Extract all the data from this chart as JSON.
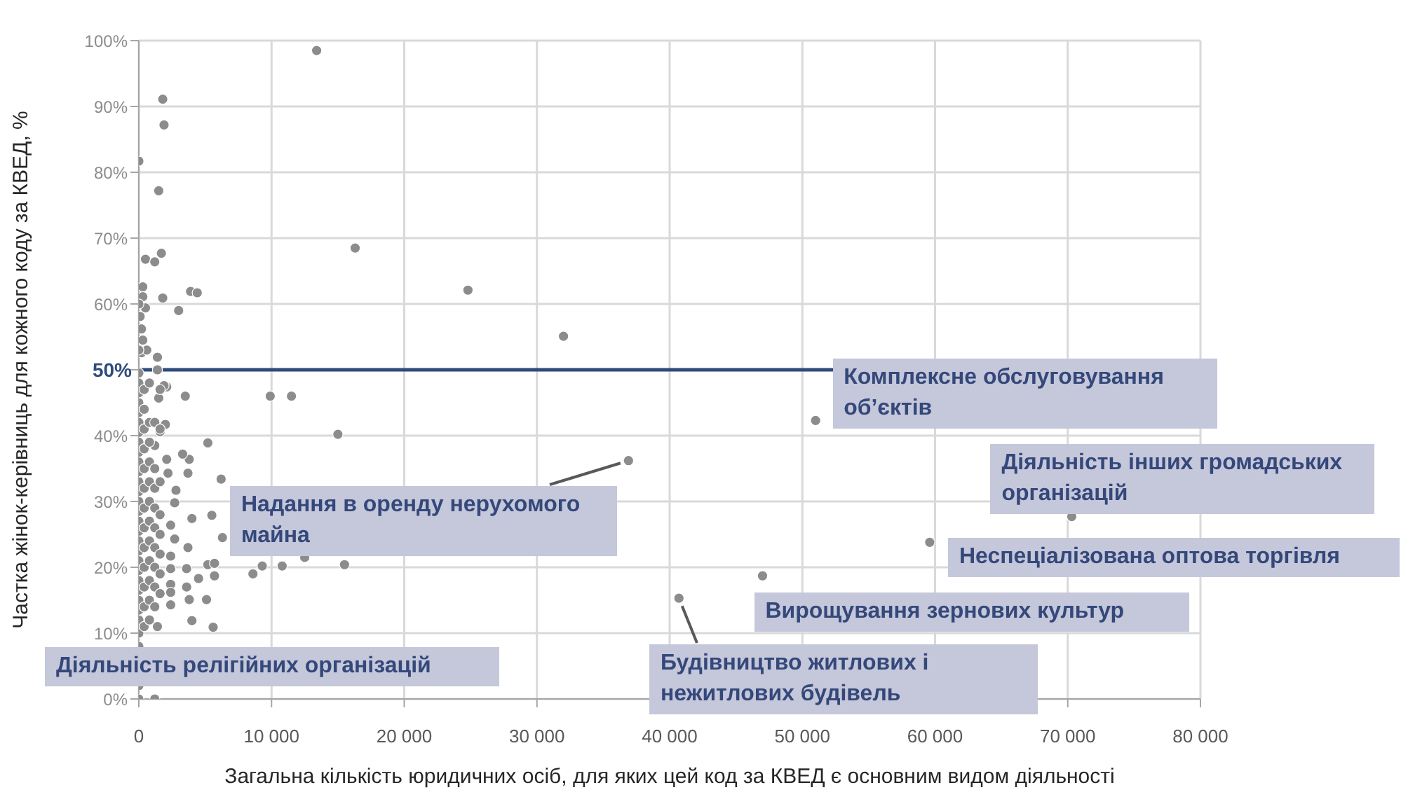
{
  "chart_data": {
    "type": "scatter",
    "xlabel": "Загальна кількість юридичних осіб, для яких цей код за КВЕД є основним видом діяльності",
    "ylabel": "Частка жінок-керівниць для кожного коду за КВЕД, %",
    "xlim": [
      0,
      80000
    ],
    "xticks": [
      0,
      {
        "value": 10000,
        "label": "10 000"
      },
      {
        "value": 20000,
        "label": "20 000"
      },
      {
        "value": 30000,
        "label": "30 000"
      },
      {
        "value": 40000,
        "label": "40 000"
      },
      {
        "value": 50000,
        "label": "50 000"
      },
      {
        "value": 60000,
        "label": "60 000"
      },
      {
        "value": 70000,
        "label": "70 000"
      },
      {
        "value": 80000,
        "label": "80 000"
      }
    ],
    "ylim": [
      0,
      100
    ],
    "yticks": [
      {
        "value": 0,
        "label": "0%"
      },
      {
        "value": 10,
        "label": "10%"
      },
      {
        "value": 20,
        "label": "20%"
      },
      {
        "value": 30,
        "label": "30%"
      },
      {
        "value": 40,
        "label": "40%"
      },
      {
        "value": 50,
        "label": null
      },
      {
        "value": 60,
        "label": "60%"
      },
      {
        "value": 70,
        "label": "70%"
      },
      {
        "value": 80,
        "label": "80%"
      },
      {
        "value": 90,
        "label": "90%"
      },
      {
        "value": 100,
        "label": "100%"
      }
    ],
    "grid": true,
    "legend": false,
    "marker": "circle",
    "ref_lines": [
      {
        "axis": "y",
        "value": 50,
        "label": "50%",
        "color": "#2f4b7c"
      }
    ],
    "annotations": [
      {
        "text": "Комплексне обслуговування об’єктів",
        "x": 51000,
        "y": 42.3
      },
      {
        "text": "Діяльність інших громадських організацій",
        "x": 70300,
        "y": 27.7
      },
      {
        "text": "Неспеціалізована оптова торгівля",
        "x": 59600,
        "y": 23.8
      },
      {
        "text": "Вирощування зернових культур",
        "x": 47000,
        "y": 18.7
      },
      {
        "text": "Будівництво житлових і нежитлових будівель",
        "x": 40700,
        "y": 15.3
      },
      {
        "text": "Надання в оренду нерухомого майна",
        "x": 36900,
        "y": 36.2
      },
      "Діяльність релігійних організацій"
    ],
    "series": [
      {
        "color": "#8c8c8c",
        "x": [
          13400,
          16300,
          24800,
          32000,
          36900,
          51000,
          70300,
          59600,
          47000,
          40700,
          9900,
          11500,
          15000,
          5200,
          6200,
          5500,
          6300,
          12500,
          15500,
          8600,
          9300,
          10800,
          5200,
          5700,
          5700,
          4500,
          5100,
          5600,
          4000,
          3800,
          3600,
          3600,
          3700,
          4000,
          3700,
          3800,
          3300,
          2100,
          2200,
          2800,
          2700,
          2400,
          2700,
          2400,
          2400,
          2400,
          2400,
          2400,
          2100,
          1900,
          1500,
          3500,
          2000,
          1600,
          1200,
          1400,
          1800,
          1900,
          0,
          1500,
          1700,
          500,
          1200,
          300,
          300,
          1800,
          3900,
          4400,
          3000,
          500,
          0,
          100,
          200,
          300,
          200,
          600,
          1400,
          1400,
          0,
          1200,
          0,
          0,
          0,
          0,
          0,
          0,
          0,
          0,
          0,
          0,
          0,
          0,
          0,
          0,
          0,
          0,
          0,
          0,
          0,
          0,
          0,
          0,
          0,
          0,
          0,
          0,
          0,
          0,
          0,
          0,
          400,
          400,
          400,
          400,
          400,
          400,
          400,
          400,
          400,
          400,
          400,
          400,
          400,
          800,
          800,
          800,
          800,
          800,
          800,
          800,
          800,
          800,
          800,
          800,
          800,
          1200,
          1200,
          1200,
          1200,
          1200,
          1200,
          1200,
          1200,
          1200,
          1600,
          1600,
          1600,
          1600,
          1600,
          1600,
          1600,
          1600
        ],
        "values": [
          98.5,
          68.5,
          62.1,
          55.1,
          36.2,
          42.3,
          27.7,
          23.8,
          18.7,
          15.3,
          46,
          46,
          40.2,
          38.9,
          33.4,
          27.9,
          24.5,
          21.5,
          20.4,
          19,
          20.2,
          20.2,
          20.4,
          20.6,
          18.7,
          18.3,
          15.1,
          10.9,
          11.9,
          15.1,
          17,
          19.8,
          23,
          27.4,
          34.3,
          36.4,
          37.2,
          36.4,
          34.3,
          31.7,
          29.8,
          26.4,
          24.3,
          21.7,
          19.8,
          17.4,
          16.2,
          14.3,
          47.4,
          47.6,
          45.7,
          46,
          41.7,
          40.6,
          38.5,
          11,
          91.1,
          87.2,
          81.7,
          77.2,
          67.7,
          66.8,
          66.4,
          62.6,
          61.1,
          60.9,
          61.9,
          61.7,
          59,
          59.4,
          60,
          58.1,
          56.2,
          54.5,
          52.6,
          53,
          51.9,
          50,
          0,
          0,
          2,
          8,
          10,
          12,
          13.5,
          15,
          16.5,
          18,
          19.5,
          21,
          22.5,
          24,
          25.5,
          27,
          28.5,
          30,
          31.5,
          33,
          34.5,
          36,
          37.5,
          39,
          40.5,
          42,
          43.5,
          45,
          46.5,
          48,
          49.5,
          53,
          11,
          14,
          17,
          20,
          23,
          26,
          29,
          32,
          35,
          38,
          41,
          44,
          47,
          12,
          15,
          18,
          21,
          24,
          27,
          30,
          33,
          36,
          39,
          42,
          48,
          14,
          17,
          20,
          23,
          26,
          29,
          32,
          35,
          42,
          16,
          19,
          22,
          25,
          28,
          33,
          41,
          47
        ]
      }
    ]
  }
}
